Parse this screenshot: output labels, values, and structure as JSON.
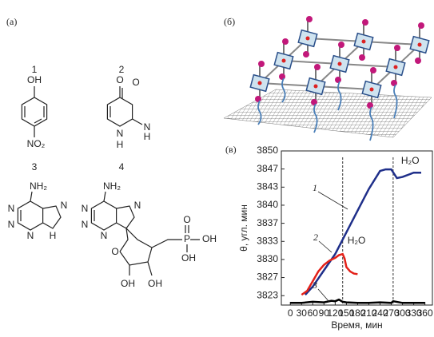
{
  "panels": {
    "a": "(а)",
    "b": "(б)",
    "c": "(в)"
  },
  "molecules": [
    {
      "number": "1",
      "atoms": [
        "OH",
        "NO₂"
      ]
    },
    {
      "number": "2",
      "atoms": [
        "O",
        "O",
        "N",
        "H",
        "N",
        "H"
      ]
    },
    {
      "number": "3",
      "atoms": [
        "NH₂",
        "N",
        "N",
        "N",
        "N",
        "H"
      ]
    },
    {
      "number": "4",
      "atoms": [
        "NH₂",
        "N",
        "N",
        "N",
        "N",
        "O",
        "OH",
        "OH",
        "O",
        "P",
        "OH",
        "OH"
      ]
    }
  ],
  "chart_data": {
    "type": "line",
    "xlabel": "Время, мин",
    "ylabel": "θ, угл. мин",
    "xlim": [
      -24,
      380
    ],
    "ylim": [
      3821.6,
      3850
    ],
    "xticks": [
      0,
      30,
      60,
      90,
      120,
      150,
      180,
      210,
      240,
      270,
      300,
      330,
      360
    ],
    "yticks": [
      {
        "value": 3823.33,
        "label": "3823"
      },
      {
        "value": 3826.67,
        "label": "3827"
      },
      {
        "value": 3830,
        "label": "3830"
      },
      {
        "value": 3833.33,
        "label": "3833"
      },
      {
        "value": 3836.67,
        "label": "3837"
      },
      {
        "value": 3840,
        "label": "3840"
      },
      {
        "value": 3843.33,
        "label": "3843"
      },
      {
        "value": 3846.67,
        "label": "3847"
      },
      {
        "value": 3850,
        "label": "3850"
      }
    ],
    "series": [
      {
        "name": "1",
        "color": "#1f2f8a",
        "x": [
          40,
          60,
          90,
          120,
          150,
          180,
          210,
          240,
          255,
          270,
          285,
          300,
          330,
          350
        ],
        "values": [
          3823.5,
          3825,
          3828,
          3831,
          3835,
          3839,
          3843,
          3846.3,
          3846.6,
          3846.6,
          3845,
          3845.2,
          3846,
          3846
        ]
      },
      {
        "name": "2",
        "color": "#e32119",
        "x": [
          30,
          45,
          60,
          75,
          90,
          105,
          120,
          130,
          140,
          145,
          150,
          160,
          170,
          180
        ],
        "values": [
          3823.5,
          3824.2,
          3826,
          3827.8,
          3829,
          3829.8,
          3830.3,
          3830.8,
          3831,
          3830.2,
          3828.6,
          3827.8,
          3827.4,
          3827.3
        ]
      },
      {
        "name": "3",
        "color": "#000000",
        "x": [
          0,
          30,
          60,
          90,
          110,
          120,
          130,
          140,
          150,
          180,
          210,
          240,
          270,
          275,
          300,
          330,
          360
        ],
        "values": [
          3822,
          3822,
          3822.2,
          3822.1,
          3822.4,
          3822.3,
          3822.6,
          3822.2,
          3822.1,
          3822,
          3822,
          3822.1,
          3822,
          3822.3,
          3822,
          3822,
          3822
        ]
      }
    ],
    "annotations": [
      {
        "text": "H₂O",
        "x": 140
      },
      {
        "text": "H₂O",
        "x": 275
      }
    ]
  }
}
